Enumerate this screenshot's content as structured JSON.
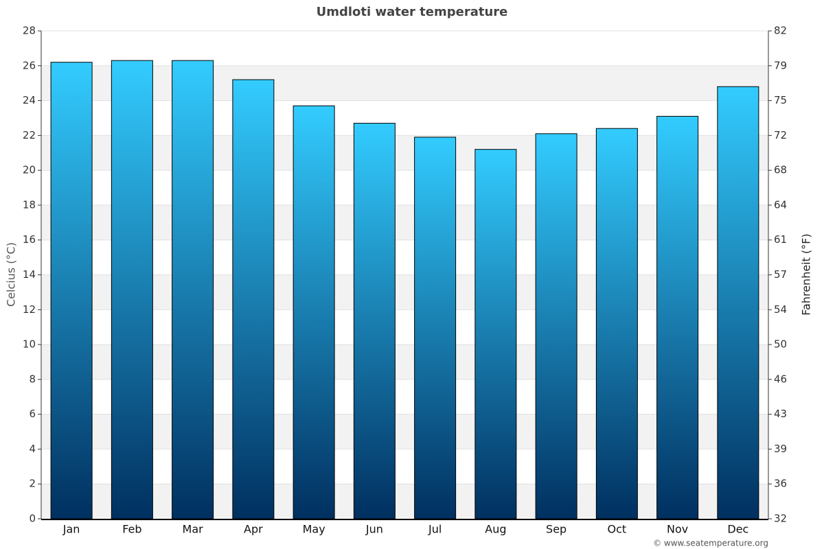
{
  "chart_data": {
    "type": "bar",
    "title": "Umdloti water temperature",
    "y_label": "Celcius (°C)",
    "y2_label": "Fahrenheit (°F)",
    "credit": "© www.seatemperature.org",
    "categories": [
      "Jan",
      "Feb",
      "Mar",
      "Apr",
      "May",
      "Jun",
      "Jul",
      "Aug",
      "Sep",
      "Oct",
      "Nov",
      "Dec"
    ],
    "values": [
      26.2,
      26.3,
      26.3,
      25.2,
      23.7,
      22.7,
      21.9,
      21.2,
      22.1,
      22.4,
      23.1,
      24.8
    ],
    "color_top": "#33ccff",
    "color_bottom": "#003060",
    "ylim": [
      0,
      28
    ],
    "yticks": [
      0,
      2,
      4,
      6,
      8,
      10,
      12,
      14,
      16,
      18,
      20,
      22,
      24,
      26,
      28
    ],
    "y2lim": [
      32,
      82.4
    ],
    "y2ticks": [
      32,
      {
        "value": 35.6,
        "label": "36"
      },
      {
        "value": 39.2,
        "label": "39"
      },
      {
        "value": 42.8,
        "label": "43"
      },
      {
        "value": 46.4,
        "label": "46"
      },
      50,
      {
        "value": 53.6,
        "label": "54"
      },
      {
        "value": 57.2,
        "label": "57"
      },
      {
        "value": 60.8,
        "label": "61"
      },
      {
        "value": 64.4,
        "label": "64"
      },
      68,
      {
        "value": 71.6,
        "label": "72"
      },
      {
        "value": 75.2,
        "label": "75"
      },
      {
        "value": 78.8,
        "label": "79"
      },
      {
        "value": 82.4,
        "label": "82"
      }
    ],
    "grid": true
  }
}
